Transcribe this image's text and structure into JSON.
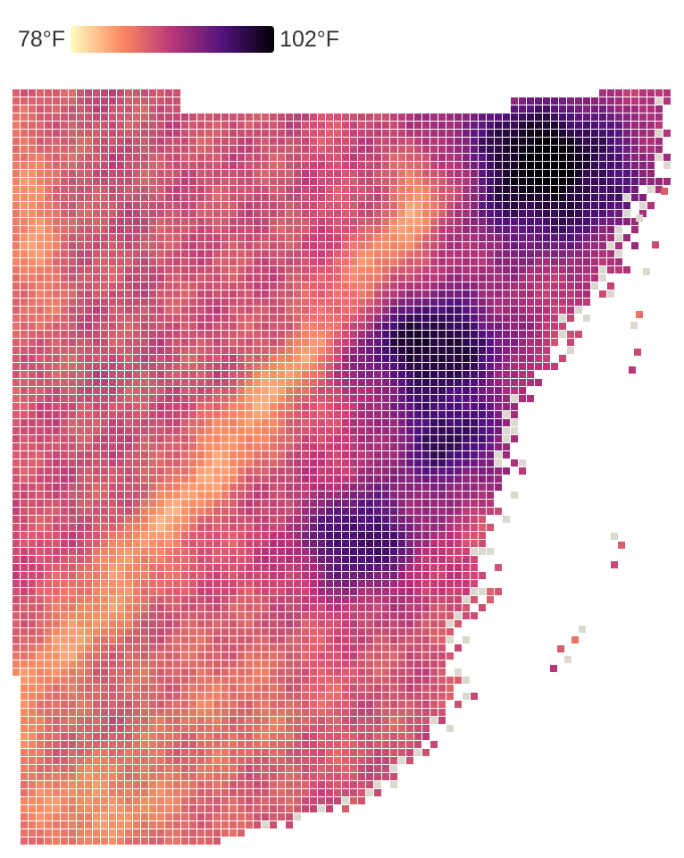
{
  "legend": {
    "min_label": "78°F",
    "max_label": "102°F",
    "min_value": 78,
    "max_value": 102,
    "colormap": [
      "#fcfdbf",
      "#fc8961",
      "#b73779",
      "#51127c",
      "#000004"
    ]
  },
  "map": {
    "land_missing_color": "#ddd8cf",
    "hotspots": [
      {
        "name": "northeast-core",
        "value": 101
      },
      {
        "name": "central-east-core",
        "value": 100
      },
      {
        "name": "southern-core",
        "value": 102
      }
    ]
  }
}
